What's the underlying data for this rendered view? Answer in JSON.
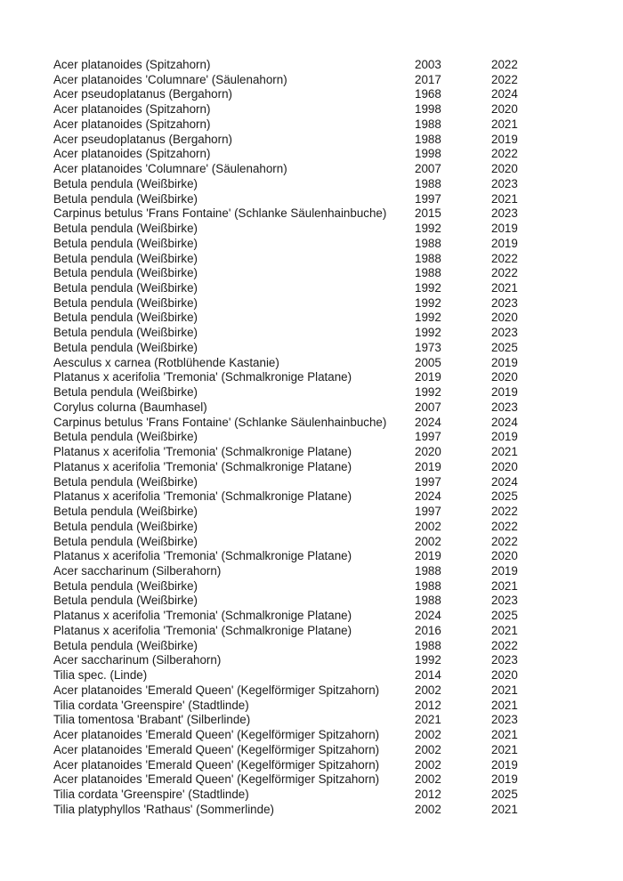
{
  "rows": [
    [
      "Acer platanoides (Spitzahorn)",
      "2003",
      "2022"
    ],
    [
      "Acer platanoides 'Columnare' (Säulenahorn)",
      "2017",
      "2022"
    ],
    [
      "Acer pseudoplatanus (Bergahorn)",
      "1968",
      "2024"
    ],
    [
      "Acer platanoides (Spitzahorn)",
      "1998",
      "2020"
    ],
    [
      "Acer platanoides (Spitzahorn)",
      "1988",
      "2021"
    ],
    [
      "Acer pseudoplatanus (Bergahorn)",
      "1988",
      "2019"
    ],
    [
      "Acer platanoides (Spitzahorn)",
      "1998",
      "2022"
    ],
    [
      "Acer platanoides 'Columnare' (Säulenahorn)",
      "2007",
      "2020"
    ],
    [
      "Betula pendula (Weißbirke)",
      "1988",
      "2023"
    ],
    [
      "Betula pendula (Weißbirke)",
      "1997",
      "2021"
    ],
    [
      "Carpinus betulus 'Frans Fontaine' (Schlanke Säulenhainbuche)",
      "2015",
      "2023"
    ],
    [
      "Betula pendula (Weißbirke)",
      "1992",
      "2019"
    ],
    [
      "Betula pendula (Weißbirke)",
      "1988",
      "2019"
    ],
    [
      "Betula pendula (Weißbirke)",
      "1988",
      "2022"
    ],
    [
      "Betula pendula (Weißbirke)",
      "1988",
      "2022"
    ],
    [
      "Betula pendula (Weißbirke)",
      "1992",
      "2021"
    ],
    [
      "Betula pendula (Weißbirke)",
      "1992",
      "2023"
    ],
    [
      "Betula pendula (Weißbirke)",
      "1992",
      "2020"
    ],
    [
      "Betula pendula (Weißbirke)",
      "1992",
      "2023"
    ],
    [
      "Betula pendula (Weißbirke)",
      "1973",
      "2025"
    ],
    [
      "Aesculus x carnea (Rotblühende Kastanie)",
      "2005",
      "2019"
    ],
    [
      "Platanus x acerifolia 'Tremonia' (Schmalkronige Platane)",
      "2019",
      "2020"
    ],
    [
      "Betula pendula (Weißbirke)",
      "1992",
      "2019"
    ],
    [
      "Corylus colurna (Baumhasel)",
      "2007",
      "2023"
    ],
    [
      "Carpinus betulus 'Frans Fontaine' (Schlanke Säulenhainbuche)",
      "2024",
      "2024"
    ],
    [
      "Betula pendula (Weißbirke)",
      "1997",
      "2019"
    ],
    [
      "Platanus x acerifolia 'Tremonia' (Schmalkronige Platane)",
      "2020",
      "2021"
    ],
    [
      "Platanus x acerifolia 'Tremonia' (Schmalkronige Platane)",
      "2019",
      "2020"
    ],
    [
      "Betula pendula (Weißbirke)",
      "1997",
      "2024"
    ],
    [
      "Platanus x acerifolia 'Tremonia' (Schmalkronige Platane)",
      "2024",
      "2025"
    ],
    [
      "Betula pendula (Weißbirke)",
      "1997",
      "2022"
    ],
    [
      "Betula pendula (Weißbirke)",
      "2002",
      "2022"
    ],
    [
      "Betula pendula (Weißbirke)",
      "2002",
      "2022"
    ],
    [
      "Platanus x acerifolia 'Tremonia' (Schmalkronige Platane)",
      "2019",
      "2020"
    ],
    [
      "Acer saccharinum (Silberahorn)",
      "1988",
      "2019"
    ],
    [
      "Betula pendula (Weißbirke)",
      "1988",
      "2021"
    ],
    [
      "Betula pendula (Weißbirke)",
      "1988",
      "2023"
    ],
    [
      "Platanus x acerifolia 'Tremonia' (Schmalkronige Platane)",
      "2024",
      "2025"
    ],
    [
      "Platanus x acerifolia 'Tremonia' (Schmalkronige Platane)",
      "2016",
      "2021"
    ],
    [
      "Betula pendula (Weißbirke)",
      "1988",
      "2022"
    ],
    [
      "Acer saccharinum (Silberahorn)",
      "1992",
      "2023"
    ],
    [
      "Tilia spec. (Linde)",
      "2014",
      "2020"
    ],
    [
      "Acer platanoides 'Emerald Queen' (Kegelförmiger Spitzahorn)",
      "2002",
      "2021"
    ],
    [
      "Tilia cordata 'Greenspire' (Stadtlinde)",
      "2012",
      "2021"
    ],
    [
      "Tilia tomentosa 'Brabant' (Silberlinde)",
      "2021",
      "2023"
    ],
    [
      "Acer platanoides 'Emerald Queen' (Kegelförmiger Spitzahorn)",
      "2002",
      "2021"
    ],
    [
      "Acer platanoides 'Emerald Queen' (Kegelförmiger Spitzahorn)",
      "2002",
      "2021"
    ],
    [
      "Acer platanoides 'Emerald Queen' (Kegelförmiger Spitzahorn)",
      "2002",
      "2019"
    ],
    [
      "Acer platanoides 'Emerald Queen' (Kegelförmiger Spitzahorn)",
      "2002",
      "2019"
    ],
    [
      "Tilia cordata 'Greenspire' (Stadtlinde)",
      "2012",
      "2025"
    ],
    [
      "Tilia platyphyllos 'Rathaus' (Sommerlinde)",
      "2002",
      "2021"
    ]
  ]
}
